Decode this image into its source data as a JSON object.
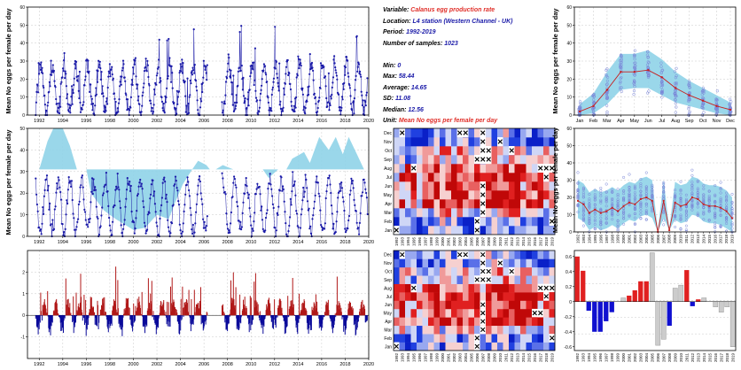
{
  "info": {
    "variable_label": "Variable:",
    "variable_value": "Calanus egg production rate",
    "location_label": "Location:",
    "location_value": "L4 station (Western Channel - UK)",
    "period_label": "Period:",
    "period_value": "1992-2019",
    "samples_label": "Number of samples:",
    "samples_value": "1023",
    "min_label": "Min:",
    "min_value": "0",
    "max_label": "Max:",
    "max_value": "58.44",
    "avg_label": "Average:",
    "avg_value": "14.65",
    "sd_label": "SD:",
    "sd_value": "11.08",
    "median_label": "Median:",
    "median_value": "12.56",
    "unit_label": "Unit:",
    "unit_value": "Mean No eggs per female per day"
  },
  "ylabel": "Mean No eggs per female per day",
  "colors": {
    "series": "#1a1aa8",
    "band": "#8fd3e8",
    "pos": "#b01818",
    "neg": "#0a0a9a",
    "grey": "#c8c8c8",
    "accent": "#e0302a"
  },
  "chart_data": [
    {
      "type": "line",
      "ylabel": "Mean No eggs per female per day",
      "xlim": [
        1991,
        2020
      ],
      "ylim": [
        0,
        60
      ],
      "xticks": [
        "1992",
        "1994",
        "1996",
        "1998",
        "2000",
        "2002",
        "2004",
        "2006",
        "2008",
        "2010",
        "2012",
        "2014",
        "2016",
        "2018",
        "2020"
      ],
      "yticks": [
        "0",
        "10",
        "20",
        "30",
        "40",
        "50",
        "60"
      ],
      "gap": [
        2006.3,
        2007.5
      ],
      "grid": true
    },
    {
      "type": "line",
      "ylabel": "Mean No eggs per female per day",
      "months": [
        "Jan",
        "Feb",
        "Mar",
        "Apr",
        "May",
        "Jun",
        "Jul",
        "Aug",
        "Sep",
        "Oct",
        "Nov",
        "Dec"
      ],
      "ylim": [
        0,
        60
      ],
      "yticks": [
        "0",
        "10",
        "20",
        "30",
        "40",
        "50",
        "60"
      ],
      "mean": [
        2,
        5,
        14,
        24,
        24,
        25,
        21,
        15,
        11,
        8,
        5,
        3
      ],
      "band_low": [
        0,
        1,
        6,
        14,
        15,
        15,
        11,
        7,
        5,
        3,
        1,
        0
      ],
      "band_high": [
        6,
        12,
        24,
        34,
        34,
        36,
        31,
        24,
        19,
        15,
        11,
        7
      ],
      "grid": true
    },
    {
      "type": "area",
      "ylabel": "Mean No eggs per female per day",
      "xlim": [
        1991,
        2020
      ],
      "ylim": [
        0,
        50
      ],
      "xticks": [
        "1992",
        "1994",
        "1996",
        "1998",
        "2000",
        "2002",
        "2004",
        "2006",
        "2008",
        "2010",
        "2012",
        "2014",
        "2016",
        "2018",
        "2020"
      ],
      "yticks": [
        "0",
        "10",
        "20",
        "30",
        "40",
        "50"
      ],
      "baseline": 31,
      "grid": true
    },
    {
      "type": "heatmap",
      "rows": [
        "Jan",
        "Feb",
        "Mar",
        "Apr",
        "May",
        "Jun",
        "Jul",
        "Aug",
        "Sep",
        "Oct",
        "Nov",
        "Dec"
      ],
      "years": [
        "1992",
        "1993",
        "1994",
        "1995",
        "1996",
        "1997",
        "1998",
        "1999",
        "2000",
        "2001",
        "2002",
        "2003",
        "2004",
        "2005",
        "2006",
        "2007",
        "2008",
        "2009",
        "2010",
        "2011",
        "2012",
        "2013",
        "2014",
        "2015",
        "2016",
        "2017",
        "2018",
        "2019"
      ]
    },
    {
      "type": "line",
      "ylabel": "Mean No eggs per female per day",
      "years": [
        "1992",
        "1993",
        "1994",
        "1995",
        "1996",
        "1997",
        "1998",
        "1999",
        "2000",
        "2001",
        "2002",
        "2003",
        "2004",
        "2005",
        "2006",
        "2007",
        "2008",
        "2009",
        "2010",
        "2011",
        "2012",
        "2013",
        "2014",
        "2015",
        "2016",
        "2017",
        "2018",
        "2019"
      ],
      "ylim": [
        0,
        60
      ],
      "yticks": [
        "0",
        "10",
        "20",
        "30",
        "40",
        "50",
        "60"
      ],
      "mean": [
        18,
        16,
        11,
        13,
        11,
        12,
        14,
        12,
        15,
        17,
        16,
        19,
        20,
        18,
        0,
        18,
        1,
        17,
        15,
        16,
        20,
        19,
        16,
        15,
        15,
        14,
        12,
        8
      ],
      "grid": true
    },
    {
      "type": "bar",
      "ylabel": "",
      "xlim": [
        1991,
        2020
      ],
      "ylim": [
        -2,
        3
      ],
      "xticks": [
        "1992",
        "1994",
        "1996",
        "1998",
        "2000",
        "2002",
        "2004",
        "2006",
        "2008",
        "2010",
        "2012",
        "2014",
        "2016",
        "2018",
        "2020"
      ],
      "yticks": [
        "-1",
        "0",
        "1",
        "2"
      ],
      "grid": true
    },
    {
      "type": "heatmap",
      "rows": [
        "Jan",
        "Feb",
        "Mar",
        "Apr",
        "May",
        "Jun",
        "Jul",
        "Aug",
        "Sep",
        "Oct",
        "Nov",
        "Dec"
      ],
      "years": [
        "1992",
        "1993",
        "1994",
        "1995",
        "1996",
        "1997",
        "1998",
        "1999",
        "2000",
        "2001",
        "2002",
        "2003",
        "2004",
        "2005",
        "2006",
        "2007",
        "2008",
        "2009",
        "2010",
        "2011",
        "2012",
        "2013",
        "2014",
        "2015",
        "2016",
        "2017",
        "2018",
        "2019"
      ]
    },
    {
      "type": "bar",
      "years": [
        "1992",
        "1993",
        "1994",
        "1995",
        "1996",
        "1997",
        "1998",
        "1999",
        "2000",
        "2001",
        "2002",
        "2003",
        "2004",
        "2005",
        "2006",
        "2007",
        "2008",
        "2009",
        "2010",
        "2011",
        "2012",
        "2013",
        "2014",
        "2015",
        "2016",
        "2017",
        "2018",
        "2019"
      ],
      "ylim": [
        -0.65,
        0.68
      ],
      "yticks": [
        "-0.6",
        "-0.4",
        "-0.2",
        "0",
        "0.2",
        "0.4",
        "0.6"
      ],
      "values": [
        0.6,
        0.41,
        -0.12,
        -0.4,
        -0.4,
        -0.26,
        -0.14,
        0.0,
        0.05,
        0.08,
        0.15,
        0.27,
        0.27,
        0.65,
        -0.58,
        -0.5,
        -0.32,
        0.18,
        0.22,
        0.42,
        -0.06,
        0.03,
        0.05,
        0.0,
        -0.07,
        -0.14,
        -0.07,
        -0.6
      ],
      "colors": [
        "red",
        "red",
        "blue",
        "blue",
        "blue",
        "blue",
        "blue",
        "grey",
        "grey",
        "red",
        "red",
        "red",
        "red",
        "grey",
        "grey",
        "grey",
        "blue",
        "grey",
        "grey",
        "red",
        "blue",
        "red",
        "grey",
        "grey",
        "grey",
        "grey",
        "grey",
        "grey"
      ]
    }
  ]
}
